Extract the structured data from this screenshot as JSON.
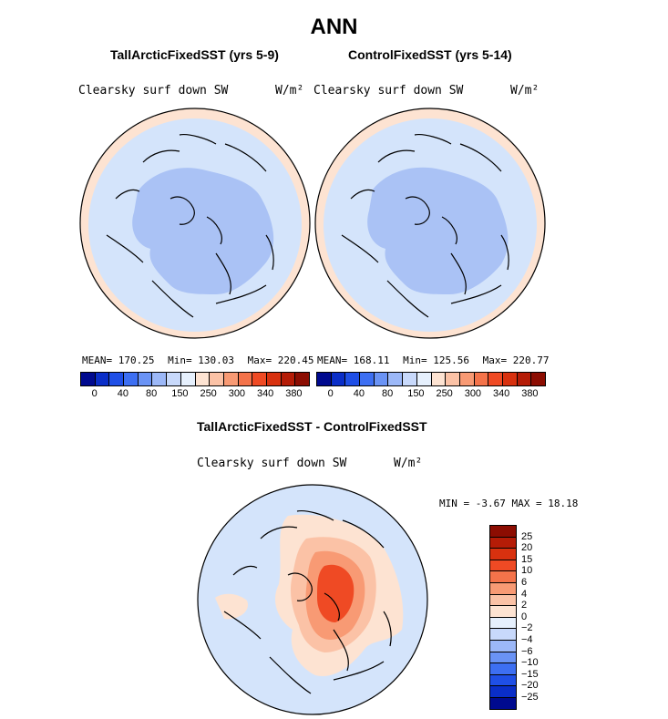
{
  "figure_title": "ANN",
  "panels": [
    {
      "title": "TallArcticFixedSST (yrs 5-9)",
      "variable": "Clearsky surf down SW",
      "units": "W/m²",
      "stats": {
        "mean": "MEAN= 170.25",
        "min": "Min= 130.03",
        "max": "Max= 220.45"
      }
    },
    {
      "title": "ControlFixedSST (yrs 5-14)",
      "variable": "Clearsky surf down SW",
      "units": "W/m²",
      "stats": {
        "mean": "MEAN= 168.11",
        "min": "Min= 125.56",
        "max": "Max= 220.77"
      }
    }
  ],
  "top_colorbar": {
    "tick_labels": [
      "0",
      "40",
      "80",
      "150",
      "250",
      "300",
      "340",
      "380"
    ],
    "colors": [
      "#000a8f",
      "#0a2ec8",
      "#1f4fe6",
      "#3d6ff2",
      "#6a93f5",
      "#9cb8f8",
      "#c8d9fb",
      "#e6f0fd",
      "#fde3d2",
      "#fbc2a6",
      "#f89a74",
      "#f4734a",
      "#ef4a24",
      "#d8310f",
      "#b51c07",
      "#8c0d02"
    ]
  },
  "difference_panel": {
    "title": "TallArcticFixedSST - ControlFixedSST",
    "variable": "Clearsky surf down SW",
    "units": "W/m²",
    "minmax": "MIN =   -3.67 MAX =   18.18"
  },
  "diff_colorbar": {
    "tick_labels": [
      "25",
      "20",
      "15",
      "10",
      "6",
      "4",
      "2",
      "0",
      "−2",
      "−4",
      "−6",
      "−10",
      "−15",
      "−20",
      "−25"
    ],
    "colors": [
      "#8c0d02",
      "#b51c07",
      "#d8310f",
      "#ef4a24",
      "#f4734a",
      "#f89a74",
      "#fbc2a6",
      "#fde3d2",
      "#e6f0fd",
      "#c8d9fb",
      "#9cb8f8",
      "#6a93f5",
      "#3d6ff2",
      "#1f4fe6",
      "#0a2ec8",
      "#000a8f"
    ]
  },
  "map_colors": {
    "pale_blue": "#d4e4fb",
    "mid_blue": "#aac2f5",
    "peach": "#fde3d2",
    "light_orange": "#fbc2a6",
    "orange": "#f89a74",
    "red_orange": "#ef4a24"
  }
}
